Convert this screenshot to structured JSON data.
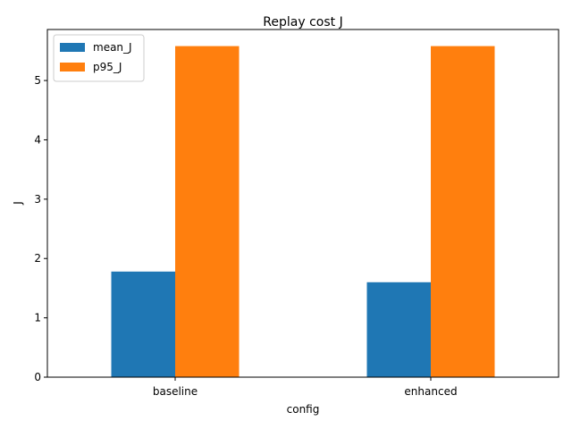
{
  "chart_data": {
    "type": "bar",
    "title": "Replay cost J",
    "xlabel": "config",
    "ylabel": "J",
    "categories": [
      "baseline",
      "enhanced"
    ],
    "series": [
      {
        "name": "mean_J",
        "values": [
          1.78,
          1.6
        ],
        "color": "#1f77b4"
      },
      {
        "name": "p95_J",
        "values": [
          5.58,
          5.58
        ],
        "color": "#ff7f0e"
      }
    ],
    "ylim": [
      0,
      5.86
    ],
    "yticks": [
      "0",
      "1",
      "2",
      "3",
      "4",
      "5"
    ],
    "legend_position": "top-left",
    "grid": false
  }
}
